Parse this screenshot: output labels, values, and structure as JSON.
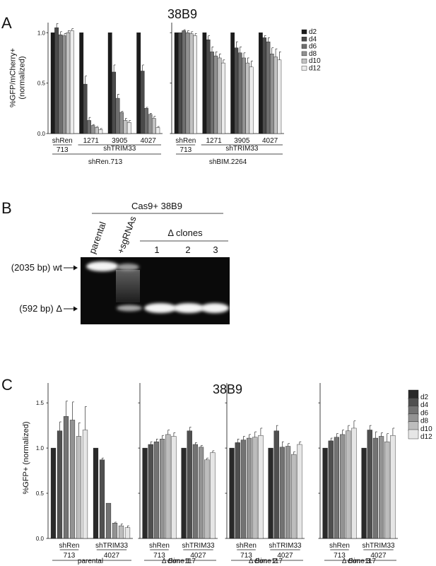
{
  "panels": {
    "a": "A",
    "b": "B",
    "c": "C"
  },
  "chart_data": [
    {
      "type": "bar",
      "panel": "A",
      "title": "38B9",
      "ylabel": [
        "%GFP/mCherry+",
        "(normalized)"
      ],
      "ylim": [
        0,
        1.1
      ],
      "yticks": [
        0.0,
        0.5,
        1.0
      ],
      "ytick_labels": [
        "0.0",
        "0.5",
        "1.0"
      ],
      "series_names": [
        "d2",
        "d4",
        "d6",
        "d8",
        "d10",
        "d12"
      ],
      "series_colors": [
        "#1c1c1c",
        "#4b4b4b",
        "#6e6e6e",
        "#919191",
        "#c2c2c2",
        "#ececec"
      ],
      "legend_position": "right",
      "groups": [
        {
          "subgroups": [
            {
              "label": [
                "shRen",
                "713"
              ],
              "underline": true,
              "values": [
                1.0,
                1.05,
                0.98,
                0.97,
                1.0,
                1.02
              ],
              "errors": [
                0,
                0.04,
                0.03,
                0.02,
                0.02,
                0.02
              ]
            },
            {
              "label": [
                "1271"
              ],
              "values": [
                1.0,
                0.49,
                0.13,
                0.08,
                0.06,
                0.04
              ],
              "errors": [
                0,
                0.08,
                0.03,
                0.01,
                0.01,
                0.01
              ]
            },
            {
              "label": [
                "3905"
              ],
              "values": [
                1.0,
                0.61,
                0.35,
                0.21,
                0.13,
                0.11
              ],
              "errors": [
                0,
                0.07,
                0.04,
                0.01,
                0.02,
                0.02
              ]
            },
            {
              "label": [
                "4027"
              ],
              "values": [
                1.0,
                0.62,
                0.25,
                0.19,
                0.15,
                0.06
              ],
              "errors": [
                0,
                0.06,
                0.01,
                0.01,
                0.02,
                0.01
              ]
            }
          ],
          "bracket_label": "shTRIM33",
          "bracket_from": 1,
          "bracket_to": 3,
          "group_label": "shRen.713"
        },
        {
          "subgroups": [
            {
              "label": [
                "shRen",
                "713"
              ],
              "underline": true,
              "values": [
                1.0,
                1.0,
                1.02,
                1.0,
                0.99,
                0.97
              ],
              "errors": [
                0,
                0,
                0.01,
                0.02,
                0.02,
                0.02
              ]
            },
            {
              "label": [
                "1271"
              ],
              "values": [
                1.0,
                0.93,
                0.81,
                0.77,
                0.75,
                0.7
              ],
              "errors": [
                0,
                0.04,
                0.05,
                0.04,
                0.04,
                0.03
              ]
            },
            {
              "label": [
                "3905"
              ],
              "values": [
                1.0,
                0.85,
                0.8,
                0.75,
                0.7,
                0.66
              ],
              "errors": [
                0,
                0.06,
                0.06,
                0.05,
                0.05,
                0.06
              ]
            },
            {
              "label": [
                "4027"
              ],
              "values": [
                1.0,
                0.95,
                0.91,
                0.79,
                0.76,
                0.73
              ],
              "errors": [
                0,
                0.02,
                0.04,
                0.06,
                0.08,
                0.08
              ]
            }
          ],
          "bracket_label": "shTRIM33",
          "bracket_from": 1,
          "bracket_to": 3,
          "group_label": "shBIM.2264"
        }
      ]
    },
    {
      "type": "bar",
      "panel": "C",
      "title": "38B9",
      "ylabel": [
        "%GFP+ (normalized)"
      ],
      "ylim": [
        0,
        1.72
      ],
      "yticks": [
        0.0,
        0.5,
        1.0,
        1.5
      ],
      "ytick_labels": [
        "0.0",
        "0.5",
        "1.0",
        "1.5"
      ],
      "series_names": [
        "d2",
        "d4",
        "d6",
        "d8",
        "d10",
        "d12"
      ],
      "series_colors": [
        "#2a2a2a",
        "#505050",
        "#737373",
        "#939393",
        "#bdbdbd",
        "#e6e6e6"
      ],
      "legend_position": "right",
      "groups": [
        {
          "subgroups": [
            {
              "label": [
                "shRen",
                "713"
              ],
              "underline": true,
              "values": [
                1.0,
                1.19,
                1.35,
                1.31,
                1.13,
                1.2
              ],
              "errors": [
                0,
                0.1,
                0.17,
                0.2,
                0.15,
                0.26
              ]
            },
            {
              "label": [
                "shTRIM33",
                "4027"
              ],
              "underline": true,
              "values": [
                1.0,
                0.87,
                0.39,
                0.17,
                0.14,
                0.12
              ],
              "errors": [
                0,
                0.02,
                0.0,
                0.01,
                0.02,
                0.02
              ]
            }
          ],
          "group_label": [
            "parental"
          ]
        },
        {
          "subgroups": [
            {
              "label": [
                "shRen",
                "713"
              ],
              "underline": true,
              "values": [
                1.0,
                1.04,
                1.07,
                1.1,
                1.15,
                1.13
              ],
              "errors": [
                0,
                0.03,
                0.03,
                0.04,
                0.05,
                0.04
              ]
            },
            {
              "label": [
                "shTRIM33",
                "4027"
              ],
              "underline": true,
              "values": [
                1.0,
                1.19,
                1.04,
                1.01,
                0.87,
                0.95
              ],
              "errors": [
                0,
                0.04,
                0.02,
                0.02,
                0.02,
                0.02
              ]
            }
          ],
          "group_label": [
            "Δ Bim -117",
            "clone 1"
          ]
        },
        {
          "subgroups": [
            {
              "label": [
                "shRen",
                "713"
              ],
              "underline": true,
              "values": [
                1.0,
                1.06,
                1.09,
                1.11,
                1.12,
                1.14
              ],
              "errors": [
                0,
                0.04,
                0.04,
                0.04,
                0.06,
                0.08
              ]
            },
            {
              "label": [
                "shTRIM33",
                "4027"
              ],
              "underline": true,
              "values": [
                1.0,
                1.19,
                1.01,
                1.02,
                0.93,
                1.04
              ],
              "errors": [
                0,
                0.06,
                0.06,
                0.03,
                0.03,
                0.03
              ]
            }
          ],
          "group_label": [
            "Δ Bim -117",
            "clone 2"
          ]
        },
        {
          "subgroups": [
            {
              "label": [
                "shRen",
                "713"
              ],
              "underline": true,
              "values": [
                1.0,
                1.08,
                1.12,
                1.15,
                1.19,
                1.22
              ],
              "errors": [
                0,
                0.03,
                0.04,
                0.05,
                0.06,
                0.08
              ]
            },
            {
              "label": [
                "shTRIM33",
                "4027"
              ],
              "underline": true,
              "values": [
                1.0,
                1.2,
                1.11,
                1.13,
                1.07,
                1.14
              ],
              "errors": [
                0,
                0.05,
                0.07,
                0.04,
                0.09,
                0.08
              ]
            }
          ],
          "group_label": [
            "Δ Bim -117",
            "clone 3"
          ]
        }
      ]
    }
  ],
  "gel": {
    "header": "Cas9+ 38B9",
    "lanes": [
      "parental",
      "+sgRNAs"
    ],
    "clones_label": "Δ clones",
    "clone_numbers": [
      "1",
      "2",
      "3"
    ],
    "band_labels": [
      "(2035 bp) wt",
      "(592 bp) Δ"
    ],
    "bands": [
      {
        "lane": "parental",
        "size": "2035 bp",
        "intensity": 1.0
      },
      {
        "lane": "+sgRNAs",
        "size": "2035 bp",
        "intensity": 0.6
      },
      {
        "lane": "+sgRNAs",
        "size": "592 bp",
        "intensity": 0.55
      },
      {
        "lane": "1",
        "size": "592 bp",
        "intensity": 1.0
      },
      {
        "lane": "2",
        "size": "592 bp",
        "intensity": 1.0
      },
      {
        "lane": "3",
        "size": "592 bp",
        "intensity": 1.0
      }
    ]
  }
}
